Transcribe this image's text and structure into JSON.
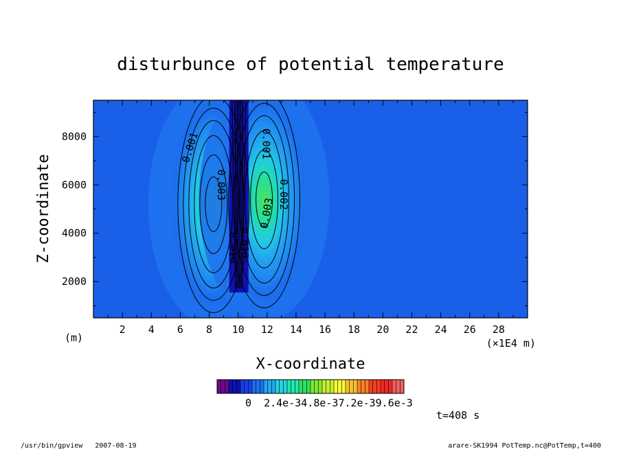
{
  "chart_data": {
    "type": "heatmap",
    "title": "disturbunce of potential temperature",
    "xlabel": "X-coordinate",
    "ylabel": "Z-coordinate",
    "x_unit_left": "(m)",
    "x_unit_right": "(×1E4 m)",
    "x_ticks": [
      2,
      4,
      6,
      8,
      10,
      12,
      14,
      16,
      18,
      20,
      22,
      24,
      26,
      28
    ],
    "y_ticks": [
      2000,
      4000,
      6000,
      8000
    ],
    "xlim": [
      0,
      30
    ],
    "ylim": [
      500,
      9500
    ],
    "time_label": "t=408 s",
    "colorbar": {
      "tick_labels": [
        "0",
        "2.4e-3",
        "4.8e-3",
        "7.2e-3",
        "9.6e-3"
      ],
      "tick_text": "0  2.4e-34.8e-37.2e-39.6e-3",
      "colors": [
        "#6a0a8a",
        "#1010b0",
        "#1a3fe8",
        "#1e6ff0",
        "#22a8f0",
        "#22d4e0",
        "#20e8b0",
        "#2fe060",
        "#7fe830",
        "#c8f030",
        "#f8f838",
        "#f8c030",
        "#f88028",
        "#f04020",
        "#f02828",
        "#f06060"
      ]
    },
    "blobs": [
      {
        "x": 8.3,
        "z": 5200,
        "peak": 0.0042
      },
      {
        "x": 11.8,
        "z": 5400,
        "peak": 0.004
      }
    ],
    "contour_labels": [
      {
        "text": "0.001",
        "x": 6.9,
        "z": 7500,
        "rot": -72
      },
      {
        "text": "0.001",
        "x": 11.7,
        "z": 7700,
        "rot": 90
      },
      {
        "text": "0.002",
        "x": 12.9,
        "z": 5600,
        "rot": 90
      },
      {
        "text": "0.003",
        "x": 12.2,
        "z": 4800,
        "rot": -80
      },
      {
        "text": "0.003",
        "x": 8.6,
        "z": 6000,
        "rot": 90
      },
      {
        "text": "0.010",
        "x": 9.4,
        "z": 3400,
        "rot": 90
      },
      {
        "text": "0.010",
        "x": 10.2,
        "z": 3600,
        "rot": 90
      }
    ]
  },
  "footer": {
    "left": "/usr/bin/gpview   2007-08-19",
    "right": "arare-SK1994_PotTemp.nc@PotTemp,t=400"
  }
}
